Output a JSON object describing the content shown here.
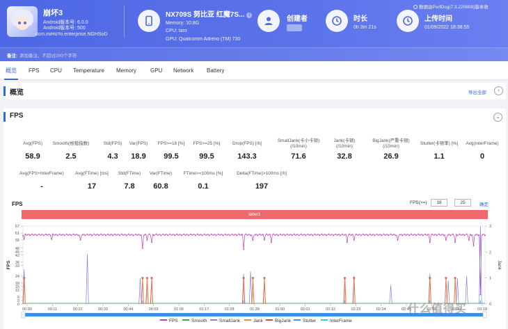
{
  "header": {
    "game_title": "崩坏3",
    "android_version": "Android版本号: 6.0.0",
    "android_code": "Android版本号: 500",
    "package": "com.miHoYo.enterprise.NGHSoD",
    "device_name": "NX709S 努比亚 红魔7S...",
    "memory": "Memory: 10.8G",
    "cpu": "CPU: taro",
    "gpu": "GPU: Qualcomm Adreno (TM) 730",
    "creator_title": "创建者",
    "duration_title": "时长",
    "duration_value": "0h 3m 21s",
    "upload_title": "上传时间",
    "upload_value": "01/09/2022 18:38:55",
    "source": "数据由PerfDog(7.3.220808)版本收",
    "note_label": "备注:",
    "note_placeholder": "添加备注，不超过200个字符"
  },
  "tabs": [
    "概览",
    "FPS",
    "CPU",
    "Temperature",
    "Memory",
    "GPU",
    "Network",
    "Battery"
  ],
  "overview": {
    "title": "概览",
    "export_label": "导出全部"
  },
  "fps_section": {
    "title": "FPS",
    "metrics_row1": [
      {
        "label": "Avg(FPS)",
        "value": "58.9"
      },
      {
        "label": "Smooth(帧稳指数)",
        "value": "2.5"
      },
      {
        "label": "Std(FPS)",
        "value": "4.3"
      },
      {
        "label": "Var(FPS)",
        "value": "18.9"
      },
      {
        "label": "FPS>=18 [%]",
        "value": "99.5"
      },
      {
        "label": "FPS>=25 [%]",
        "value": "99.5"
      },
      {
        "label": "Drop(FPS) [/h]",
        "value": "143.3"
      },
      {
        "label": "SmallJank(卡小卡顿)\n(/10min)",
        "value": "71.6"
      },
      {
        "label": "Jank(卡顿)\n(/10min)",
        "value": "32.8"
      },
      {
        "label": "BigJank(严重卡顿)\n(/10min)",
        "value": "26.9"
      },
      {
        "label": "Stutter(卡顿率) [%]",
        "value": "1.1"
      },
      {
        "label": "Avg(InterFrame)",
        "value": "0"
      }
    ],
    "metrics_row2": [
      {
        "label": "Avg(FPS+InterFrame)",
        "value": "-"
      },
      {
        "label": "Avg(FTime) [ms]",
        "value": "17"
      },
      {
        "label": "Std(FTime)",
        "value": "7.8"
      },
      {
        "label": "Var(FTime)",
        "value": "60.8"
      },
      {
        "label": "FTime>=100ms [%]",
        "value": "0.1"
      },
      {
        "label": "Delta(FTime)>100ms [/h]",
        "value": "197"
      }
    ],
    "chart_label": "FPS",
    "threshold_label": "FPS(>=)",
    "threshold_values": [
      "18",
      "25"
    ],
    "confirm_label": "确定",
    "label_bar": "label1"
  },
  "chart_data": {
    "type": "line",
    "title": "FPS",
    "ylabel": "FPS",
    "ylabel_right": "Jank",
    "y_ticks": [
      "0",
      "3",
      "6",
      "12",
      "15",
      "18",
      "24",
      "33",
      "36",
      "42",
      "45",
      "48",
      "55",
      "61",
      "67"
    ],
    "y_ticks_right": [
      "0",
      "1",
      "2",
      "3"
    ],
    "x_ticks": [
      "00:00",
      "00:11",
      "00:22",
      "00:33",
      "00:44",
      "00:55",
      "01:06",
      "01:17",
      "01:28",
      "01:39",
      "01:50",
      "02:01",
      "02:12",
      "02:23",
      "02:34",
      "02:45",
      "02:56",
      "03:07",
      "03:18"
    ],
    "ylim": [
      0,
      67
    ],
    "ylim_right": [
      0,
      3
    ],
    "legend": [
      "FPS",
      "Smooth",
      "SmallJank",
      "Jank",
      "BigJank",
      "Stutter",
      "InterFrame"
    ],
    "colors": {
      "FPS": "#c23fb6",
      "Smooth": "#3aa357",
      "SmallJank": "#7b84e6",
      "Jank": "#ef8a3c",
      "BigJank": "#e24545",
      "Stutter": "#3b8ee8",
      "InterFrame": "#3cc8d8"
    },
    "fps_dips": [
      {
        "t": 0.5,
        "v": 55
      },
      {
        "t": 12.5,
        "v": 55
      },
      {
        "t": 25,
        "v": 55
      },
      {
        "t": 52,
        "v": 48
      },
      {
        "t": 54,
        "v": 55
      },
      {
        "t": 56,
        "v": 53
      },
      {
        "t": 96,
        "v": 47
      },
      {
        "t": 100,
        "v": 55
      },
      {
        "t": 105,
        "v": 55
      },
      {
        "t": 108,
        "v": 53
      },
      {
        "t": 141,
        "v": 53
      },
      {
        "t": 144,
        "v": 55
      },
      {
        "t": 163,
        "v": 55
      },
      {
        "t": 177,
        "v": 53
      },
      {
        "t": 184,
        "v": 55
      },
      {
        "t": 188,
        "v": 53
      },
      {
        "t": 194,
        "v": 55
      },
      {
        "t": 196,
        "v": 50
      },
      {
        "t": 199,
        "v": 8
      }
    ],
    "fps_base": 59.5,
    "fps_duration_s": 201,
    "bigjank_times": [
      0.5,
      52,
      54,
      56,
      96,
      100,
      105,
      140,
      144,
      177,
      184,
      188
    ],
    "smalljank_spikes": [
      {
        "t": 0.5,
        "v": 30
      },
      {
        "t": 28,
        "v": 43
      },
      {
        "t": 51,
        "v": 22
      },
      {
        "t": 54,
        "v": 20
      },
      {
        "t": 56,
        "v": 22
      },
      {
        "t": 96,
        "v": 26
      },
      {
        "t": 99,
        "v": 28
      },
      {
        "t": 105,
        "v": 20
      },
      {
        "t": 140,
        "v": 22
      },
      {
        "t": 144,
        "v": 24
      },
      {
        "t": 160,
        "v": 16
      },
      {
        "t": 177,
        "v": 26
      },
      {
        "t": 185,
        "v": 20
      },
      {
        "t": 189,
        "v": 22
      },
      {
        "t": 193,
        "v": 24
      },
      {
        "t": 199,
        "v": 67
      }
    ]
  },
  "watermark": "什么值得买"
}
